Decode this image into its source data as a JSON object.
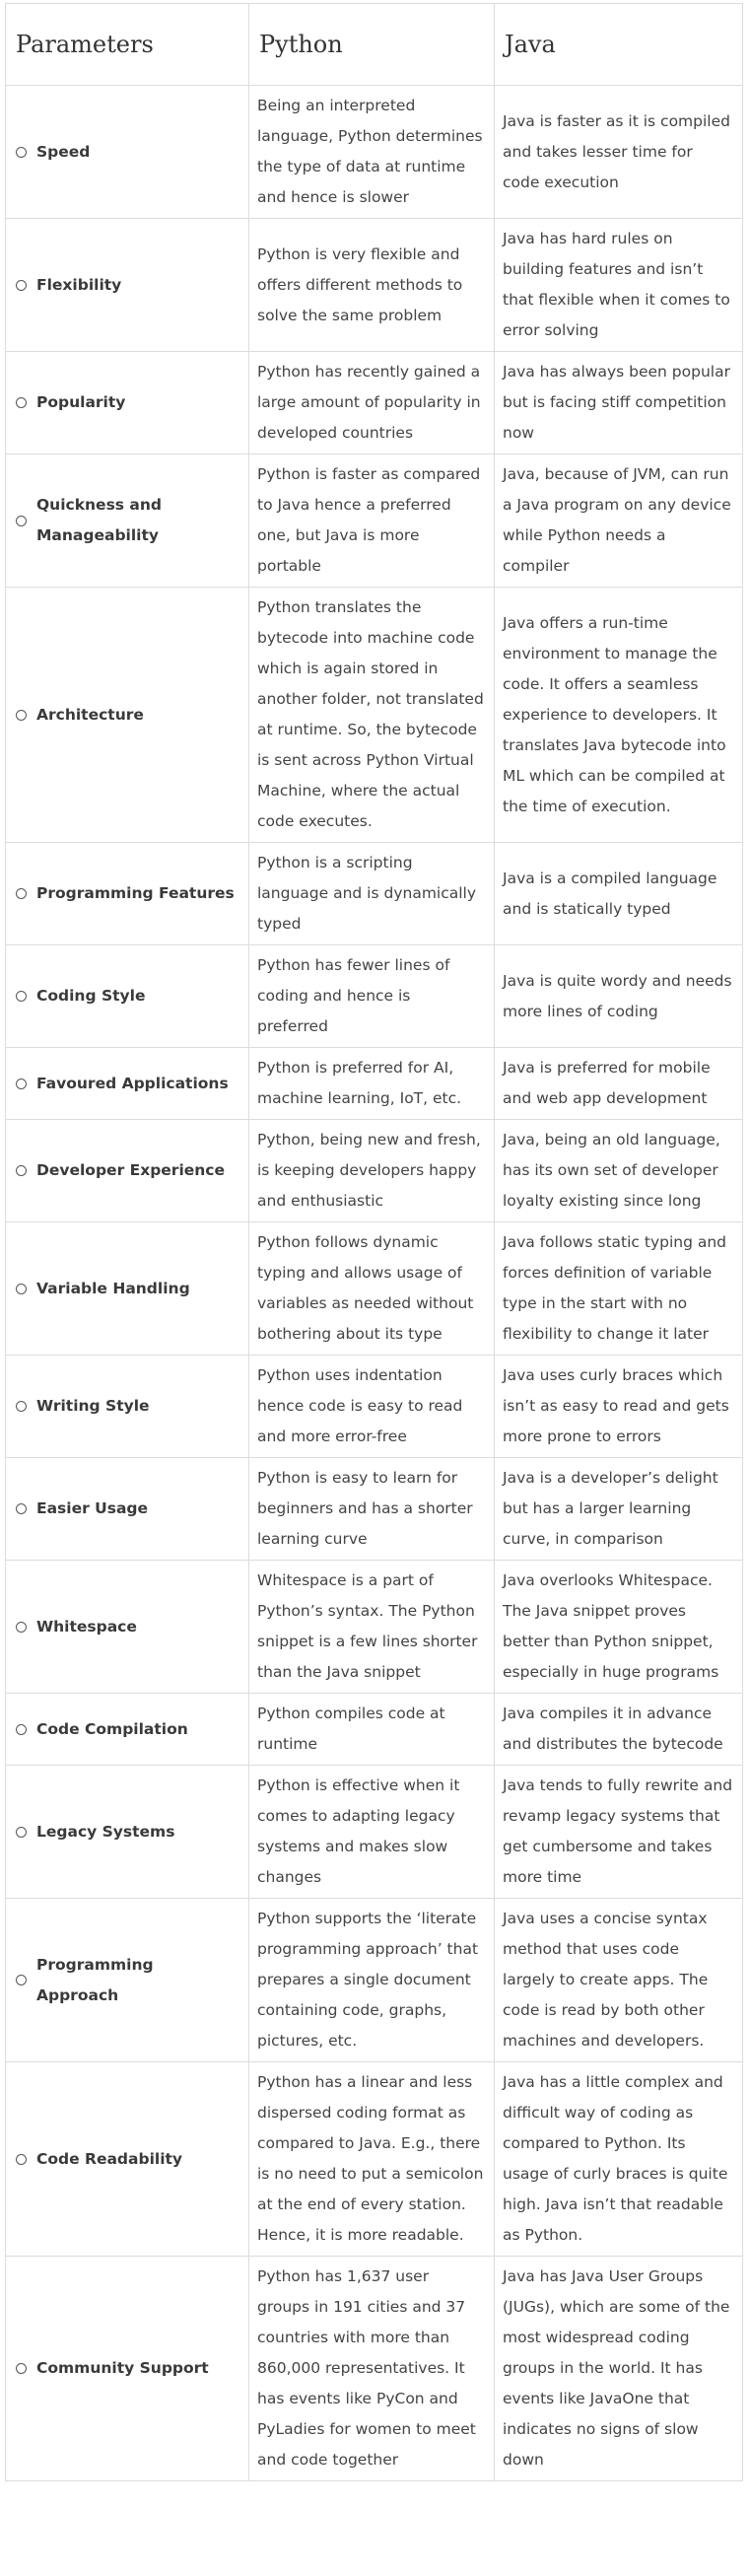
{
  "table": {
    "headers": [
      "Parameters",
      "Python",
      "Java"
    ],
    "rows": [
      {
        "parameter": "Speed",
        "python": "Being an interpreted language, Python determines the type of data at runtime and hence is slower",
        "java": "Java is faster as it is compiled and takes lesser time for code execution"
      },
      {
        "parameter": "Flexibility",
        "python": "Python is very flexible and offers different methods to solve the same problem",
        "java": "Java has hard rules on building features and isn’t that flexible when it comes to error solving"
      },
      {
        "parameter": "Popularity",
        "python": "Python has recently gained a large amount of popularity in developed countries",
        "java": "Java has always been popular but is facing stiff competition now"
      },
      {
        "parameter": "Quickness and Manageability",
        "python": "Python is faster as compared to Java hence a preferred one, but Java is more portable",
        "java": "Java, because of JVM, can run a Java program on any device while Python needs a compiler"
      },
      {
        "parameter": "Architecture",
        "python": "Python translates the bytecode into machine code which is again stored in another folder, not translated at runtime. So, the bytecode is sent across Python Virtual Machine, where the actual code executes.",
        "java": "Java offers a run-time environment to manage the code. It offers a seamless experience to developers. It translates Java bytecode into ML which can be compiled at the time of execution."
      },
      {
        "parameter": "Programming Features",
        "python": "Python is a scripting language and is dynamically typed",
        "java": "Java is a compiled language and is statically typed"
      },
      {
        "parameter": "Coding Style",
        "python": "Python has fewer lines of coding and hence is preferred",
        "java": "Java is quite wordy and needs more lines of coding"
      },
      {
        "parameter": "Favoured Applications",
        "python": "Python is preferred for AI, machine learning, IoT, etc.",
        "java": "Java is preferred for mobile and web app development"
      },
      {
        "parameter": "Developer Experience",
        "python": "Python, being new and fresh, is keeping developers happy and enthusiastic",
        "java": "Java, being an old language, has its own set of developer loyalty existing since long"
      },
      {
        "parameter": "Variable Handling",
        "python": "Python follows dynamic typing and allows usage of variables as needed without bothering about its type",
        "java": "Java follows static typing and forces definition of variable type in the start with no flexibility to change it later"
      },
      {
        "parameter": "Writing Style",
        "python": "Python uses indentation hence code is easy to read and more error-free",
        "java": "Java uses curly braces which isn’t as easy to read and gets more prone to errors"
      },
      {
        "parameter": "Easier Usage",
        "python": "Python is easy to learn for beginners and has a shorter learning curve",
        "java": "Java is a developer’s delight but has a larger learning curve, in comparison"
      },
      {
        "parameter": "Whitespace",
        "python": "Whitespace is a part of Python’s syntax. The Python snippet is a few lines shorter than the Java snippet",
        "java": "Java overlooks Whitespace. The Java snippet proves better than Python snippet, especially in huge programs"
      },
      {
        "parameter": "Code Compilation",
        "python": "Python compiles code at runtime",
        "java": "Java compiles it in advance and distributes the bytecode"
      },
      {
        "parameter": "Legacy Systems",
        "python": "Python is effective when it comes to adapting legacy systems and makes slow changes",
        "java": "Java tends to fully rewrite and revamp legacy systems that get cumbersome and takes more time"
      },
      {
        "parameter": "Programming Approach",
        "python": "Python supports the ‘literate programming approach’ that prepares a single document containing code, graphs, pictures, etc.",
        "java": "Java uses a concise syntax method that uses code largely to create apps. The code is read by both other machines and developers."
      },
      {
        "parameter": "Code Readability",
        "python": "Python has a linear and less dispersed coding format as compared to Java. E.g., there is no need to put a semicolon at the end of every station. Hence, it is more readable.",
        "java": "Java has a little complex and difficult way of coding as compared to Python. Its usage of curly braces is quite high. Java isn’t that readable as Python."
      },
      {
        "parameter": "Community Support",
        "python": "Python has 1,637 user groups in 191 cities and 37 countries with more than 860,000 representatives. It has events like PyCon and PyLadies for women to meet and code together",
        "java": "Java has Java User Groups (JUGs), which are some of the most widespread coding groups in the world. It has events like JavaOne that indicates no signs of slow down"
      }
    ]
  }
}
